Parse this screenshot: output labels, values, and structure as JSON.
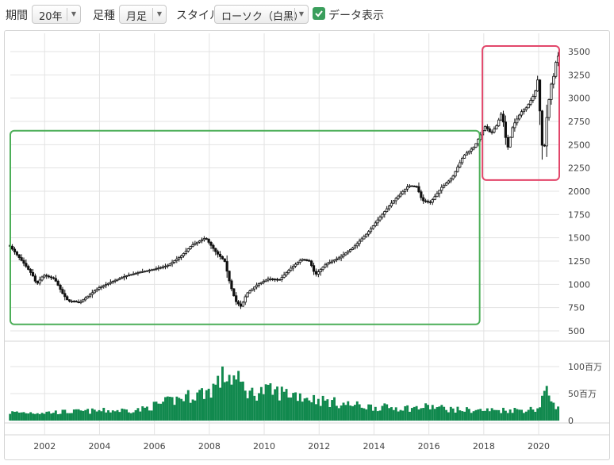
{
  "toolbar": {
    "period_label": "期間",
    "period_value": "20年",
    "bar_label": "足種",
    "bar_value": "月足",
    "style_label": "スタイル",
    "style_value": "ローソク（白黒）",
    "data_display_label": "データ表示",
    "data_display_checked": true
  },
  "chart_data": {
    "type": "candlestick",
    "frequency": "monthly",
    "price_axis": {
      "ticks": [
        "500",
        "750",
        "1000",
        "1250",
        "1500",
        "1750",
        "2000",
        "2250",
        "2500",
        "2750",
        "3000",
        "3250",
        "3500"
      ],
      "range": [
        500,
        3600
      ],
      "position": "right"
    },
    "volume_axis": {
      "ticks": [
        "0",
        "50百万",
        "100百万"
      ],
      "range": [
        0,
        130
      ]
    },
    "x_axis": {
      "ticks": [
        "2002",
        "2004",
        "2006",
        "2008",
        "2010",
        "2012",
        "2014",
        "2016",
        "2018",
        "2020"
      ],
      "range": [
        2000.7,
        2020.75
      ]
    },
    "grid": true,
    "price_close_path": [
      [
        2000.75,
        1420
      ],
      [
        2001.0,
        1330
      ],
      [
        2001.3,
        1220
      ],
      [
        2001.6,
        1100
      ],
      [
        2001.75,
        1000
      ],
      [
        2002.0,
        1100
      ],
      [
        2002.4,
        1060
      ],
      [
        2002.7,
        900
      ],
      [
        2002.9,
        820
      ],
      [
        2003.1,
        820
      ],
      [
        2003.3,
        800
      ],
      [
        2003.6,
        870
      ],
      [
        2004.0,
        960
      ],
      [
        2004.5,
        1030
      ],
      [
        2005.0,
        1090
      ],
      [
        2005.5,
        1130
      ],
      [
        2006.0,
        1160
      ],
      [
        2006.5,
        1200
      ],
      [
        2007.0,
        1300
      ],
      [
        2007.4,
        1420
      ],
      [
        2007.9,
        1500
      ],
      [
        2008.3,
        1340
      ],
      [
        2008.6,
        1250
      ],
      [
        2008.8,
        1000
      ],
      [
        2009.0,
        820
      ],
      [
        2009.2,
        760
      ],
      [
        2009.4,
        900
      ],
      [
        2009.8,
        1000
      ],
      [
        2010.2,
        1060
      ],
      [
        2010.6,
        1050
      ],
      [
        2011.0,
        1170
      ],
      [
        2011.4,
        1270
      ],
      [
        2011.7,
        1250
      ],
      [
        2011.9,
        1100
      ],
      [
        2012.3,
        1220
      ],
      [
        2012.8,
        1290
      ],
      [
        2013.3,
        1400
      ],
      [
        2013.8,
        1550
      ],
      [
        2014.2,
        1700
      ],
      [
        2014.7,
        1880
      ],
      [
        2015.3,
        2060
      ],
      [
        2015.6,
        2050
      ],
      [
        2015.8,
        1900
      ],
      [
        2016.1,
        1880
      ],
      [
        2016.5,
        2040
      ],
      [
        2016.9,
        2150
      ],
      [
        2017.3,
        2380
      ],
      [
        2017.7,
        2480
      ],
      [
        2018.0,
        2650
      ],
      [
        2018.1,
        2700
      ],
      [
        2018.3,
        2620
      ],
      [
        2018.5,
        2700
      ],
      [
        2018.7,
        2850
      ],
      [
        2018.9,
        2450
      ],
      [
        2019.1,
        2700
      ],
      [
        2019.4,
        2850
      ],
      [
        2019.6,
        2900
      ],
      [
        2019.9,
        3050
      ],
      [
        2020.0,
        3200
      ],
      [
        2020.15,
        2600
      ],
      [
        2020.2,
        2300
      ],
      [
        2020.35,
        2850
      ],
      [
        2020.5,
        3150
      ],
      [
        2020.6,
        3250
      ],
      [
        2020.7,
        3450
      ]
    ],
    "volume_profile": [
      [
        2000.75,
        15
      ],
      [
        2002.0,
        15
      ],
      [
        2004.0,
        18
      ],
      [
        2005.5,
        20
      ],
      [
        2006.0,
        28
      ],
      [
        2007.0,
        42
      ],
      [
        2008.0,
        55
      ],
      [
        2008.6,
        85
      ],
      [
        2009.0,
        75
      ],
      [
        2009.5,
        50
      ],
      [
        2010.0,
        55
      ],
      [
        2011.0,
        50
      ],
      [
        2012.0,
        38
      ],
      [
        2013.0,
        30
      ],
      [
        2014.0,
        25
      ],
      [
        2015.5,
        23
      ],
      [
        2016.0,
        26
      ],
      [
        2017.0,
        20
      ],
      [
        2018.0,
        19
      ],
      [
        2019.5,
        20
      ],
      [
        2020.0,
        22
      ],
      [
        2020.2,
        55
      ],
      [
        2020.5,
        40
      ],
      [
        2020.75,
        18
      ]
    ],
    "highlights": [
      {
        "color": "#4cae58",
        "x_range": [
          2000.75,
          2017.85
        ],
        "y_range": [
          570,
          2650
        ]
      },
      {
        "color": "#e2466a",
        "x_range": [
          2017.95,
          2020.75
        ],
        "y_range": [
          2120,
          3560
        ]
      }
    ],
    "candle_color": "#111111",
    "volume_color": "#11894e"
  }
}
